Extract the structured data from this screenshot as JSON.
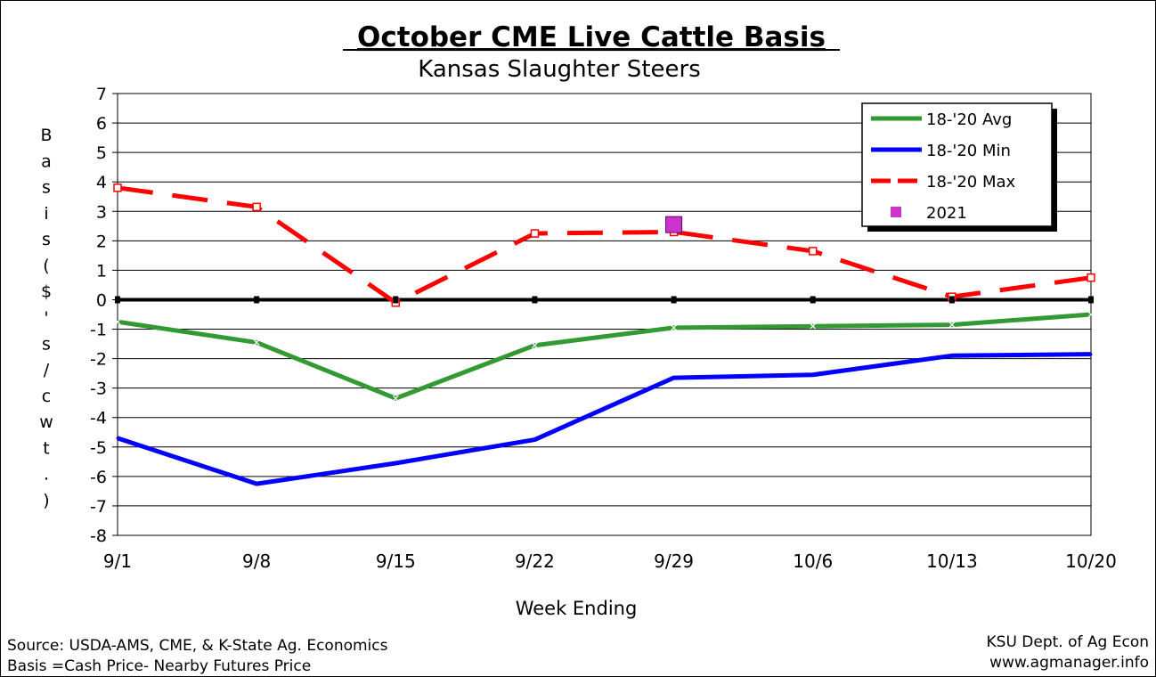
{
  "chart_data": {
    "type": "line",
    "title": "October CME Live Cattle Basis",
    "subtitle": "Kansas Slaughter Steers",
    "xlabel": "Week Ending",
    "ylabel": "Basis ($'s/cwt.)",
    "categories": [
      "9/1",
      "9/8",
      "9/15",
      "9/22",
      "9/29",
      "10/6",
      "10/13",
      "10/20"
    ],
    "ylim": [
      -8,
      7
    ],
    "yticks": [
      "7",
      "6",
      "5",
      "4",
      "3",
      "2",
      "1",
      "0",
      "-1",
      "-2",
      "-3",
      "-4",
      "-5",
      "-6",
      "-7",
      "-8"
    ],
    "grid": true,
    "legend_position": "top-right",
    "series": [
      {
        "name": "18-'20 Avg",
        "color": "#339933",
        "style": "solid",
        "values": [
          -0.75,
          -1.45,
          -3.35,
          -1.55,
          -0.95,
          -0.9,
          -0.85,
          -0.5
        ]
      },
      {
        "name": "18-'20 Min",
        "color": "#0000ff",
        "style": "solid",
        "values": [
          -4.7,
          -6.25,
          -5.55,
          -4.75,
          -2.65,
          -2.55,
          -1.9,
          -1.85
        ]
      },
      {
        "name": "18-'20 Max",
        "color": "#ff0000",
        "style": "dashed",
        "values": [
          3.8,
          3.15,
          -0.1,
          2.25,
          2.3,
          1.65,
          0.1,
          0.75
        ]
      },
      {
        "name": "2021",
        "color": "#cc33cc",
        "style": "marker",
        "values": [
          null,
          null,
          null,
          null,
          2.55,
          null,
          null,
          null
        ]
      }
    ]
  },
  "footer": {
    "source_line1": "Source:  USDA-AMS, CME, & K-State Ag. Economics",
    "source_line2": "Basis =Cash Price- Nearby Futures Price",
    "credit_line1": "KSU Dept. of Ag Econ",
    "credit_line2": "www.agmanager.info"
  }
}
